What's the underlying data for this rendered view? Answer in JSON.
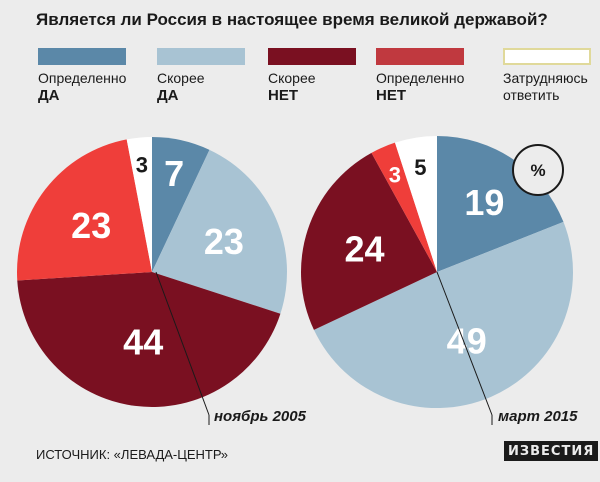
{
  "title": "Является ли Россия в настоящее время великой державой?",
  "unit_badge": "%",
  "legend": [
    {
      "label": "Определенно",
      "strong": "ДА",
      "color": "#5b88a8"
    },
    {
      "label": "Скорее",
      "strong": "ДА",
      "color": "#a8c3d3"
    },
    {
      "label": "Скорее",
      "strong": "НЕТ",
      "color": "#7a1021"
    },
    {
      "label": "Определенно",
      "strong": "НЕТ",
      "color": "#c0393f"
    },
    {
      "label": "Затрудняюсь ответить",
      "strong": "",
      "color": "#ffffff"
    }
  ],
  "chart_data": [
    {
      "type": "pie",
      "label": "ноябрь 2005",
      "categories": [
        "Определенно ДА",
        "Скорее ДА",
        "Скорее НЕТ",
        "Определенно НЕТ",
        "Затрудняюсь ответить"
      ],
      "values": [
        7,
        23,
        44,
        23,
        3
      ],
      "colors": [
        "#5b88a8",
        "#a8c3d3",
        "#7a1021",
        "#ef3e3a",
        "#ffffff"
      ]
    },
    {
      "type": "pie",
      "label": "март 2015",
      "categories": [
        "Определенно ДА",
        "Скорее ДА",
        "Скорее НЕТ",
        "Определенно НЕТ",
        "Затрудняюсь ответить"
      ],
      "values": [
        19,
        49,
        24,
        3,
        5
      ],
      "colors": [
        "#5b88a8",
        "#a8c3d3",
        "#7a1021",
        "#ef3e3a",
        "#ffffff"
      ]
    }
  ],
  "source": "ИСТОЧНИК: «ЛЕВАДА-ЦЕНТР»",
  "logo": "ИЗВЕСТИЯ"
}
